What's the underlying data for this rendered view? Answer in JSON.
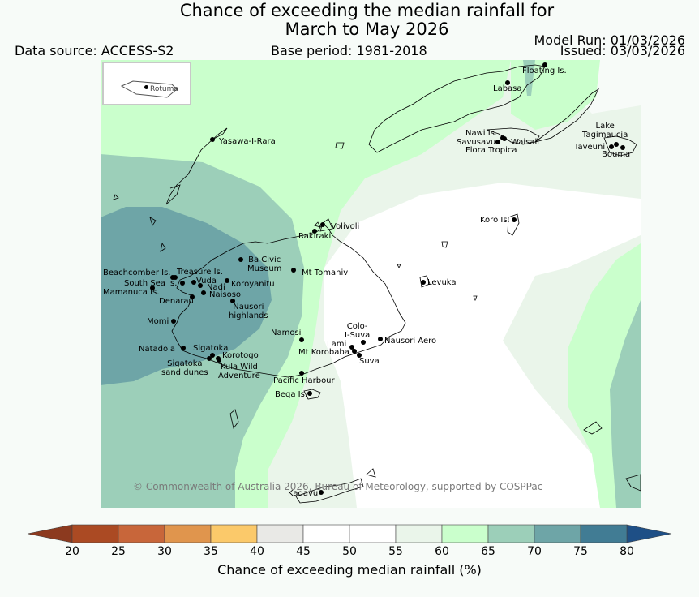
{
  "title_line1": "Chance of exceeding the median rainfall for",
  "title_line2": "March to May 2026",
  "data_source": "Data source: ACCESS-S2",
  "base_period": "Base period: 1981-2018",
  "model_run": "Model Run: 01/03/2026",
  "issued": "Issued: 03/03/2026",
  "inset_label": "Rotuma",
  "copyright": "© Commonwealth of Australia 2026, Bureau of Meteorology, supported by COSPPac",
  "places": [
    {
      "id": "floating-is",
      "label": "Floating Is."
    },
    {
      "id": "labasa",
      "label": "Labasa"
    },
    {
      "id": "yasawa",
      "label": "Yasawa-I-Rara"
    },
    {
      "id": "nawi",
      "label": "Nawi Is."
    },
    {
      "id": "savusavu",
      "label": "Savusavu"
    },
    {
      "id": "waisali",
      "label": "Waisali"
    },
    {
      "id": "flora",
      "label": "Flora Tropica"
    },
    {
      "id": "lake-tagimaucia",
      "label": "Lake\nTagimaucia"
    },
    {
      "id": "taveuni",
      "label": "Taveuni"
    },
    {
      "id": "bouma",
      "label": "Bouma"
    },
    {
      "id": "koro",
      "label": "Koro Is."
    },
    {
      "id": "volivoli",
      "label": "Volivoli"
    },
    {
      "id": "rakiraki",
      "label": "Rakiraki"
    },
    {
      "id": "ba-civic",
      "label": "Ba Civic\nMuseum"
    },
    {
      "id": "mt-tomanivi",
      "label": "Mt Tomanivi"
    },
    {
      "id": "beachcomber",
      "label": "Beachcomber Is."
    },
    {
      "id": "treasure",
      "label": "Treasure Is."
    },
    {
      "id": "south-sea",
      "label": "South Sea Is."
    },
    {
      "id": "vuda",
      "label": "Vuda"
    },
    {
      "id": "nadi",
      "label": "Nadi"
    },
    {
      "id": "koroyanitu",
      "label": "Koroyanitu"
    },
    {
      "id": "mamanuca",
      "label": "Mamanuca Is."
    },
    {
      "id": "naisoso",
      "label": "Naisoso"
    },
    {
      "id": "denarau",
      "label": "Denarau"
    },
    {
      "id": "nausori-highlands",
      "label": "Nausori\nhighlands"
    },
    {
      "id": "levuka",
      "label": "Levuka"
    },
    {
      "id": "momi",
      "label": "Momi"
    },
    {
      "id": "colo-i-suva",
      "label": "Colo-\nI-Suva"
    },
    {
      "id": "namosi",
      "label": "Namosi"
    },
    {
      "id": "nausori-aero",
      "label": "Nausori Aero"
    },
    {
      "id": "lami",
      "label": "Lami"
    },
    {
      "id": "natadola",
      "label": "Natadola"
    },
    {
      "id": "sigatoka",
      "label": "Sigatoka"
    },
    {
      "id": "mt-korobaba",
      "label": "Mt Korobaba"
    },
    {
      "id": "korotogo",
      "label": "Korotogo"
    },
    {
      "id": "suva",
      "label": "Suva"
    },
    {
      "id": "sigatoka-dunes",
      "label": "Sigatoka\nsand dunes"
    },
    {
      "id": "kula",
      "label": "Kula Wild\nAdventure"
    },
    {
      "id": "pacific-harbour",
      "label": "Pacific Harbour"
    },
    {
      "id": "beqa",
      "label": "Beqa Is."
    },
    {
      "id": "kadavu",
      "label": "Kadavu"
    }
  ],
  "colorbar": {
    "label": "Chance of exceeding median rainfall (%)",
    "ticks": [
      "20",
      "25",
      "30",
      "35",
      "40",
      "45",
      "50",
      "55",
      "60",
      "65",
      "70",
      "75",
      "80"
    ],
    "low_extend_color": "#8c3a1f",
    "high_extend_color": "#1e4f86",
    "colors": [
      "#ab4a23",
      "#c8663a",
      "#e0954d",
      "#fbc96a",
      "#e9e9e6",
      "#ffffff",
      "#ffffff",
      "#eaf5ea",
      "#caffcc",
      "#9ccfb9",
      "#6ea5a7",
      "#417c94"
    ]
  },
  "legend_colors": {
    "c55": "#eaf5ea",
    "c60": "#caffcc",
    "c65": "#9ccfb9",
    "c70": "#6ea5a7"
  }
}
